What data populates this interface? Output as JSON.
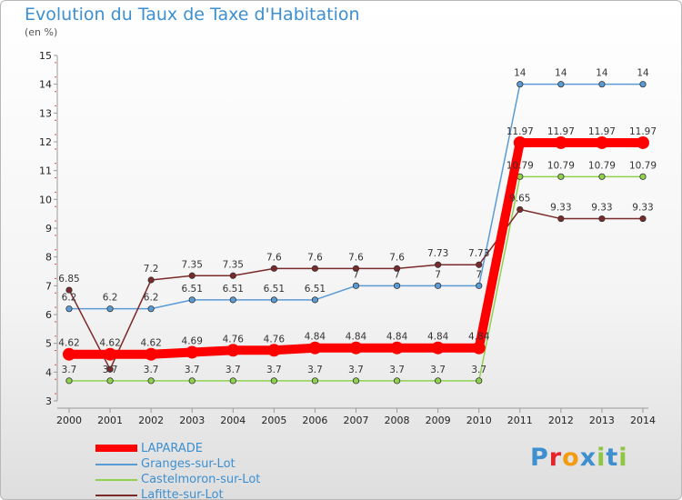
{
  "chart_data": {
    "type": "line",
    "title": "Evolution du Taux de Taxe d'Habitation",
    "subtitle": "(en %)",
    "x": [
      "2000",
      "2001",
      "2002",
      "2003",
      "2004",
      "2005",
      "2006",
      "2007",
      "2008",
      "2009",
      "2010",
      "2011",
      "2012",
      "2013",
      "2014"
    ],
    "ylim": [
      3,
      15
    ],
    "yticks": [
      3,
      4,
      5,
      6,
      7,
      8,
      9,
      10,
      11,
      12,
      13,
      14,
      15
    ],
    "grid": false,
    "legend_position": "bottom-left",
    "series": [
      {
        "name": "LAPARADE",
        "color": "#ff0000",
        "values": [
          4.62,
          4.62,
          4.62,
          4.69,
          4.76,
          4.76,
          4.84,
          4.84,
          4.84,
          4.84,
          4.84,
          11.97,
          11.97,
          11.97,
          11.97
        ],
        "labels": [
          "4.62",
          "4.62",
          "4.62",
          "4.69",
          "4.76",
          "4.76",
          "4.84",
          "4.84",
          "4.84",
          "4.84",
          "4.84",
          "11.97",
          "11.97",
          "11.97",
          "11.97"
        ]
      },
      {
        "name": "Granges-sur-Lot",
        "color": "#5b9bd5",
        "values": [
          6.2,
          6.2,
          6.2,
          6.51,
          6.51,
          6.51,
          6.51,
          7,
          7,
          7,
          7,
          14,
          14,
          14,
          14
        ],
        "labels": [
          "6.2",
          "6.2",
          "6.2",
          "6.51",
          "6.51",
          "6.51",
          "6.51",
          "7",
          "7",
          "7",
          "7",
          "14",
          "14",
          "14",
          "14"
        ]
      },
      {
        "name": "Castelmoron-sur-Lot",
        "color": "#8fd14f",
        "values": [
          3.7,
          3.7,
          3.7,
          3.7,
          3.7,
          3.7,
          3.7,
          3.7,
          3.7,
          3.7,
          3.7,
          10.79,
          10.79,
          10.79,
          10.79
        ],
        "labels": [
          "3.7",
          "3.7",
          "3.7",
          "3.7",
          "3.7",
          "3.7",
          "3.7",
          "3.7",
          "3.7",
          "3.7",
          "3.7",
          "10.79",
          "10.79",
          "10.79",
          "10.79"
        ]
      },
      {
        "name": "Lafitte-sur-Lot",
        "color": "#7a2a2a",
        "values": [
          6.85,
          4.1,
          7.2,
          7.35,
          7.35,
          7.6,
          7.6,
          7.6,
          7.6,
          7.73,
          7.73,
          9.65,
          9.33,
          9.33,
          9.33
        ],
        "labels": [
          "6.85",
          "",
          "7.2",
          "7.35",
          "7.35",
          "7.6",
          "7.6",
          "7.6",
          "7.6",
          "7.73",
          "7.73",
          "9.65",
          "9.33",
          "9.33",
          "9.33"
        ]
      }
    ]
  },
  "logo": {
    "text": "Proxiti",
    "letters": [
      "P",
      "r",
      "o",
      "x",
      "i",
      "t",
      "i"
    ],
    "colors": [
      "#3d8fd0",
      "#e6232a",
      "#f39c12",
      "#3d8fd0",
      "#8fc641",
      "#3d8fd0",
      "#8fc641"
    ]
  }
}
